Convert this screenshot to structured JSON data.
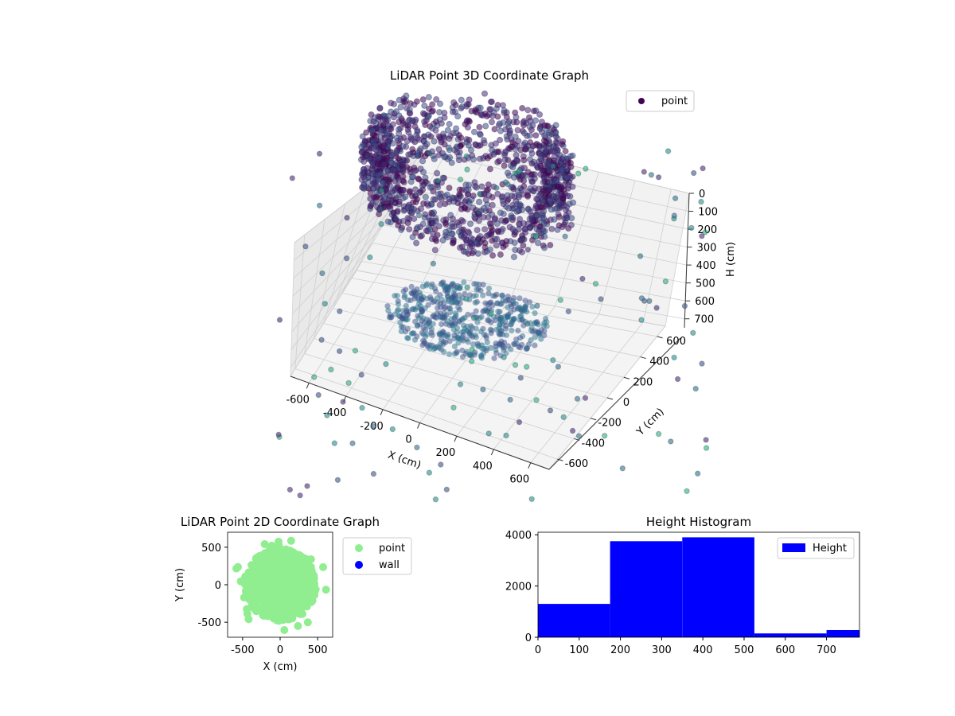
{
  "chart_data": [
    {
      "type": "scatter",
      "projection": "3d",
      "title": "LiDAR Point 3D Coordinate Graph",
      "xlabel": "X (cm)",
      "ylabel": "Y (cm)",
      "zlabel": "H (cm)",
      "xticks": [
        "-600",
        "-400",
        "-200",
        "0",
        "200",
        "400",
        "600"
      ],
      "yticks": [
        "-600",
        "-400",
        "-200",
        "0",
        "200",
        "400",
        "600"
      ],
      "zticks": [
        "0",
        "100",
        "200",
        "300",
        "400",
        "500",
        "600",
        "700"
      ],
      "xlim": [
        -700,
        700
      ],
      "ylim": [
        -700,
        700
      ],
      "zlim": [
        750,
        0
      ],
      "zaxis_inverted": true,
      "colormap": "viridis",
      "legend": {
        "position": "upper-right",
        "entries": [
          {
            "label": "point",
            "color": "#440154"
          }
        ]
      },
      "series": [
        {
          "name": "point",
          "description_points": [
            {
              "x": 0,
              "y": 0,
              "h": 320,
              "count": "dense ring ~ radius 450"
            },
            {
              "x": -600,
              "y": -300,
              "h": 720
            },
            {
              "x": 450,
              "y": 500,
              "h": 40
            },
            {
              "x": 300,
              "y": -500,
              "h": 700
            },
            {
              "x": -500,
              "y": 200,
              "h": 650
            }
          ]
        }
      ],
      "grid": true
    },
    {
      "type": "scatter",
      "title": "LiDAR Point 2D Coordinate Graph",
      "xlabel": "X (cm)",
      "ylabel": "Y (cm)",
      "xticks": [
        "-500",
        "0",
        "500"
      ],
      "yticks": [
        "-500",
        "0",
        "500"
      ],
      "xlim": [
        -700,
        700
      ],
      "ylim": [
        -700,
        700
      ],
      "legend": {
        "position": "outside-right",
        "entries": [
          {
            "label": "point",
            "color": "#90ee90"
          },
          {
            "label": "wall",
            "color": "#0000ff"
          }
        ]
      },
      "series": [
        {
          "name": "point",
          "color": "#90ee90",
          "shape": "dense disk radius ~ 480 centered at origin"
        }
      ],
      "grid": false
    },
    {
      "type": "bar",
      "subtype": "histogram",
      "title": "Height Histogram",
      "xticks": [
        "0",
        "100",
        "200",
        "300",
        "400",
        "500",
        "600",
        "700"
      ],
      "yticks": [
        "0",
        "2000",
        "4000"
      ],
      "xlim": [
        0,
        780
      ],
      "ylim": [
        0,
        4100
      ],
      "bin_edges": [
        0,
        175,
        350,
        525,
        700,
        780
      ],
      "values": [
        1300,
        3750,
        3900,
        150,
        280
      ],
      "series": [
        {
          "name": "Height",
          "color": "#0000ff"
        }
      ],
      "legend": {
        "position": "upper-right",
        "entries": [
          {
            "label": "Height",
            "color": "#0000ff"
          }
        ]
      },
      "grid": false
    }
  ]
}
